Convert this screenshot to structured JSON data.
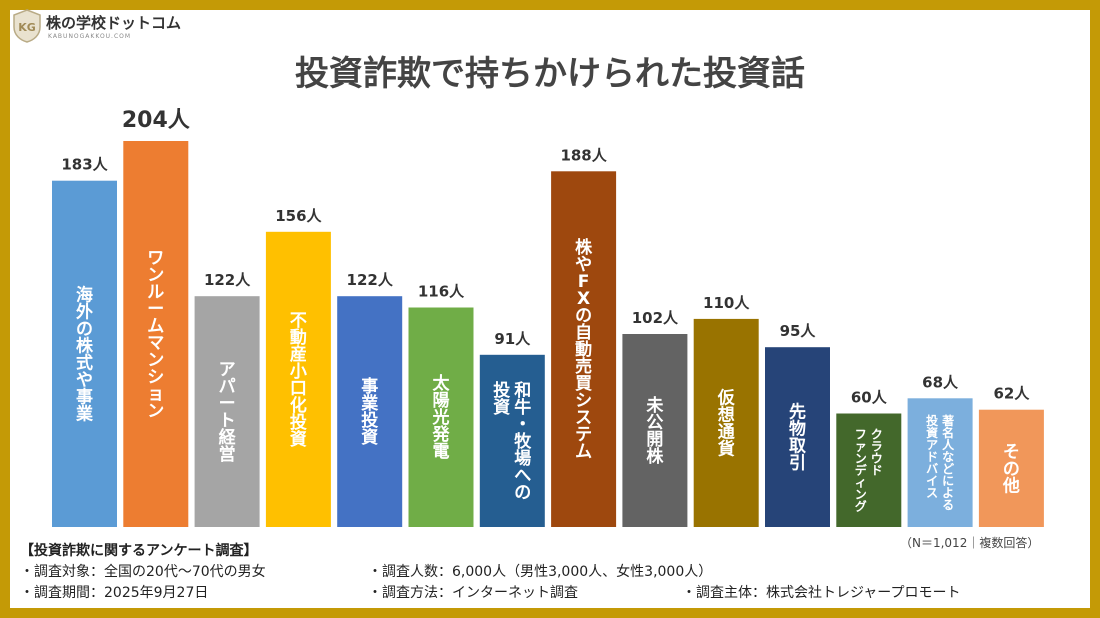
{
  "brand": {
    "name": "株の学校ドットコム",
    "subtitle": "KABUNOGAKKOU.COM",
    "badge_text": "KG"
  },
  "colors": {
    "frame": "#c49a06",
    "background": "#ffffff",
    "value_label": "#333333"
  },
  "chart_data": {
    "type": "bar",
    "title": "投資詐欺で持ちかけられた投資話",
    "unit": "人",
    "ylim": [
      0,
      204
    ],
    "grid": false,
    "legend": "none",
    "categories": [
      "海外の株式や事業",
      "ワンルームマンション",
      "アパート経営",
      "不動産小口化投資",
      "事業投資",
      "太陽光発電",
      "和牛・牧場への投資",
      "株やFXの自動売買システム",
      "未公開株",
      "仮想通貨",
      "先物取引",
      "クラウドファンディング",
      "著名人などによる投資アドバイス",
      "その他"
    ],
    "values": [
      183,
      204,
      122,
      156,
      122,
      116,
      91,
      188,
      102,
      110,
      95,
      60,
      68,
      62
    ],
    "value_labels": [
      "183人",
      "204人",
      "122人",
      "156人",
      "122人",
      "116人",
      "91人",
      "188人",
      "102人",
      "110人",
      "95人",
      "60人",
      "68人",
      "62人"
    ],
    "label_lines": [
      [
        "海外の株式や事業"
      ],
      [
        "ワンルームマンション"
      ],
      [
        "アパート経営"
      ],
      [
        "不動産小口化投資"
      ],
      [
        "事業投資"
      ],
      [
        "太陽光発電"
      ],
      [
        "和牛・牧場への",
        "投資"
      ],
      [
        "株やFXの自動売買システム"
      ],
      [
        "未公開株"
      ],
      [
        "仮想通貨"
      ],
      [
        "先物取引"
      ],
      [
        "クラウド",
        "ファンディング"
      ],
      [
        "著名人などによる",
        "投資アドバイス"
      ],
      [
        "その他"
      ]
    ],
    "colors": [
      "#5b9bd5",
      "#ed7d31",
      "#a5a5a5",
      "#ffc000",
      "#4472c4",
      "#70ad47",
      "#255e91",
      "#9e480e",
      "#636363",
      "#997300",
      "#264478",
      "#43682b",
      "#7cafdd",
      "#f1975a"
    ],
    "highlight_index": 1
  },
  "survey": {
    "title": "【投資詐欺に関するアンケート調査】",
    "target": "・調査対象：全国の20代～70代の男女",
    "period": "・調査期間：2025年9月27日",
    "respondents": "・調査人数：6,000人（男性3,000人、女性3,000人）",
    "method": "・調査方法：インターネット調査",
    "organizer": "・調査主体：株式会社トレジャープロモート",
    "note": "（N＝1,012｜複数回答）"
  }
}
